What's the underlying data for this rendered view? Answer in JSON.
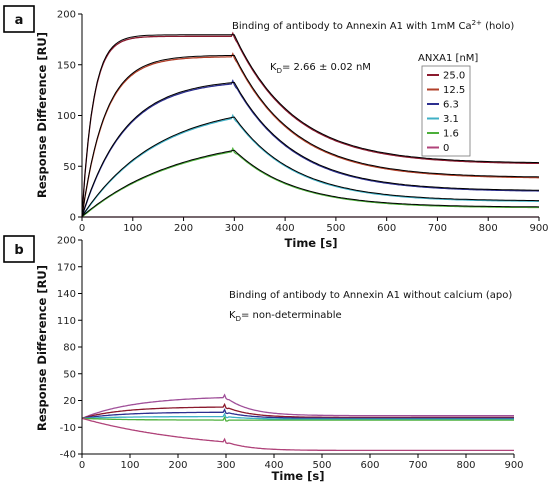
{
  "chart_data": [
    {
      "panel_label": "a",
      "type": "line",
      "title": "",
      "xlabel": "Time [s]",
      "ylabel": "Response Difference [RU]",
      "xlim": [
        0,
        900
      ],
      "ylim": [
        0,
        200
      ],
      "xticks": [
        "0",
        "100",
        "200",
        "300",
        "400",
        "500",
        "600",
        "700",
        "800",
        "900"
      ],
      "yticks": [
        "0",
        "50",
        "100",
        "150",
        "200"
      ],
      "annotation_line1_prefix": "Binding of antibody to Annexin A1 with 1mM Ca",
      "annotation_line1_sup": "2+",
      "annotation_line1_suffix": " (holo)",
      "annotation_kd_main": "K",
      "annotation_kd_sub": "D",
      "annotation_kd_value": "= 2.66 ± 0.02 nM",
      "legend_title": "ANXA1 [nM]",
      "legend_placement": "top-right",
      "association_end": 300,
      "series": [
        {
          "name": "25.0",
          "color": "#8b1a2e",
          "assoc_plateau": 178,
          "assoc_rate": 0.045,
          "dissoc_floor": 52,
          "dissoc_rate": 0.0085
        },
        {
          "name": "12.5",
          "color": "#b2402a",
          "assoc_plateau": 158,
          "assoc_rate": 0.022,
          "dissoc_floor": 38,
          "dissoc_rate": 0.0085
        },
        {
          "name": "6.3",
          "color": "#2c2f8f",
          "assoc_plateau": 135,
          "assoc_rate": 0.012,
          "dissoc_floor": 25,
          "dissoc_rate": 0.0085
        },
        {
          "name": "3.1",
          "color": "#3fb0c6",
          "assoc_plateau": 112,
          "assoc_rate": 0.0068,
          "dissoc_floor": 15,
          "dissoc_rate": 0.0085
        },
        {
          "name": "1.6",
          "color": "#4caf3a",
          "assoc_plateau": 82,
          "assoc_rate": 0.0052,
          "dissoc_floor": 9,
          "dissoc_rate": 0.0085
        },
        {
          "name": "0",
          "color": "#b0437a",
          "assoc_plateau": 0,
          "assoc_rate": 0.01,
          "dissoc_floor": 0,
          "dissoc_rate": 0.01
        }
      ],
      "fit_color": "#000000"
    },
    {
      "panel_label": "b",
      "type": "line",
      "title": "",
      "xlabel": "Time [s]",
      "ylabel": "Response Difference [RU]",
      "xlim": [
        0,
        900
      ],
      "ylim": [
        -40,
        200
      ],
      "xticks": [
        "0",
        "100",
        "200",
        "300",
        "400",
        "500",
        "600",
        "700",
        "800",
        "900"
      ],
      "yticks": [
        "-40",
        "-10",
        "20",
        "50",
        "80",
        "110",
        "140",
        "170",
        "200"
      ],
      "annotation_line1": "Binding of antibody to Annexin A1 without calcium (apo)",
      "annotation_kd_main": "K",
      "annotation_kd_sub": "D",
      "annotation_kd_value": "= non-determinable",
      "association_end": 300,
      "series": [
        {
          "color": "#a0509a",
          "assoc_plateau": 25,
          "assoc_rate": 0.009,
          "dissoc_floor": 3,
          "dissoc_rate": 0.02
        },
        {
          "color": "#8b1a2e",
          "assoc_plateau": 13,
          "assoc_rate": 0.012,
          "dissoc_floor": 1,
          "dissoc_rate": 0.02
        },
        {
          "color": "#2c2f8f",
          "assoc_plateau": 7,
          "assoc_rate": 0.012,
          "dissoc_floor": 0,
          "dissoc_rate": 0.02
        },
        {
          "color": "#3fb0c6",
          "assoc_plateau": 2,
          "assoc_rate": 0.012,
          "dissoc_floor": -1,
          "dissoc_rate": 0.02
        },
        {
          "color": "#4caf3a",
          "assoc_plateau": -2,
          "assoc_rate": 0.012,
          "dissoc_floor": -2,
          "dissoc_rate": 0.02
        },
        {
          "color": "#b0437a",
          "assoc_plateau": -38,
          "assoc_rate": 0.004,
          "dissoc_floor": -36,
          "dissoc_rate": 0.02
        }
      ]
    }
  ]
}
